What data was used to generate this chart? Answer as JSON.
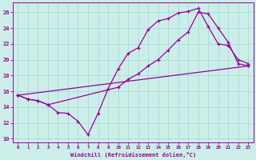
{
  "bg_color": "#cceee8",
  "line_color": "#990099",
  "grid_color": "#aadddd",
  "xlabel": "Windchill (Refroidissement éolien,°C)",
  "xlim": [
    -0.5,
    23.5
  ],
  "ylim": [
    9.5,
    27.2
  ],
  "xticks": [
    0,
    1,
    2,
    3,
    4,
    5,
    6,
    7,
    8,
    9,
    10,
    11,
    12,
    13,
    14,
    15,
    16,
    17,
    18,
    19,
    20,
    21,
    22,
    23
  ],
  "yticks": [
    10,
    12,
    14,
    16,
    18,
    20,
    22,
    24,
    26
  ],
  "series1_x": [
    0,
    1,
    2,
    3,
    4,
    5,
    6,
    7,
    8,
    9,
    10,
    11,
    12,
    13,
    14,
    15,
    16,
    17,
    18,
    19,
    20,
    21,
    22,
    23
  ],
  "series1_y": [
    15.5,
    15.0,
    14.8,
    14.3,
    13.3,
    13.2,
    12.2,
    10.5,
    13.2,
    16.3,
    18.8,
    20.8,
    21.5,
    23.8,
    24.9,
    25.2,
    25.9,
    26.1,
    26.5,
    24.2,
    22.0,
    21.8,
    20.0,
    19.5
  ],
  "series2_x": [
    0,
    1,
    2,
    3,
    10,
    11,
    12,
    13,
    14,
    15,
    16,
    17,
    18,
    19,
    20,
    21,
    22,
    23
  ],
  "series2_y": [
    15.5,
    15.0,
    14.8,
    14.3,
    16.5,
    17.5,
    18.2,
    19.2,
    20.0,
    21.2,
    22.5,
    23.5,
    26.0,
    25.8,
    24.0,
    22.2,
    19.5,
    19.2
  ],
  "series3_x": [
    0,
    23
  ],
  "series3_y": [
    15.5,
    19.2
  ]
}
